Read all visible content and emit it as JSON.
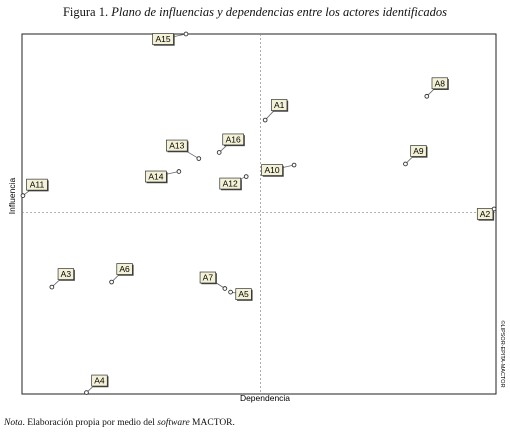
{
  "figure": {
    "title_prefix": "Figura 1.",
    "title_italic": "Plano de influencias y dependencias entre los actores identificados",
    "note_prefix": "Nota",
    "note_text_1": ". Elaboración propia por medio del ",
    "note_italic": "software",
    "note_text_2": " MACTOR."
  },
  "chart_data": {
    "type": "scatter",
    "title": "",
    "xlabel": "Dependencia",
    "ylabel": "Influencia",
    "watermark": "©LIPSOR-EPITA-MACTOR",
    "grid": false,
    "xlim": [
      0,
      100
    ],
    "ylim": [
      0,
      100
    ],
    "reference_lines": {
      "x": 50.3,
      "y": 50.4
    },
    "points": [
      {
        "label": "A1",
        "x": 51.3,
        "y": 76.1
      },
      {
        "label": "A2",
        "x": 99.6,
        "y": 51.4
      },
      {
        "label": "A3",
        "x": 6.3,
        "y": 29.7
      },
      {
        "label": "A4",
        "x": 13.6,
        "y": 0.4
      },
      {
        "label": "A5",
        "x": 44.0,
        "y": 28.3
      },
      {
        "label": "A6",
        "x": 18.9,
        "y": 31.1
      },
      {
        "label": "A7",
        "x": 42.8,
        "y": 29.3
      },
      {
        "label": "A8",
        "x": 85.4,
        "y": 82.7
      },
      {
        "label": "A9",
        "x": 80.9,
        "y": 63.9
      },
      {
        "label": "A10",
        "x": 57.4,
        "y": 63.6
      },
      {
        "label": "A11",
        "x": 0.2,
        "y": 55.1
      },
      {
        "label": "A12",
        "x": 47.3,
        "y": 60.4
      },
      {
        "label": "A13",
        "x": 37.3,
        "y": 65.4
      },
      {
        "label": "A14",
        "x": 33.1,
        "y": 61.8
      },
      {
        "label": "A15",
        "x": 34.6,
        "y": 100.0
      },
      {
        "label": "A16",
        "x": 41.6,
        "y": 67.1
      }
    ]
  }
}
